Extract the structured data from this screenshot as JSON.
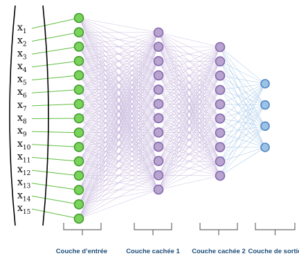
{
  "inputs": [
    "1",
    "2",
    "3",
    "4",
    "5",
    "6",
    "7",
    "8",
    "9",
    "10",
    "11",
    "12",
    "13",
    "14",
    "15"
  ],
  "input_var": "x",
  "layers": [
    {
      "label": "Couche d’entrée",
      "count": 15,
      "fill": "#7ad35a",
      "stroke": "#3f9a2b"
    },
    {
      "label": "Couche cachée 1",
      "count": 12,
      "fill": "#b8a4cf",
      "stroke": "#8467ad"
    },
    {
      "label": "Couche cachée 2",
      "count": 10,
      "fill": "#b8a4cf",
      "stroke": "#8467ad"
    },
    {
      "label": "Couche de sortie",
      "count": 4,
      "fill": "#9cc3e6",
      "stroke": "#4f86c4"
    }
  ],
  "colors": {
    "input_line": "#5fbf3f",
    "hidden_edge": "#c6b6dc",
    "output_edge": "#9ec3e6",
    "label": "#1f4e79"
  }
}
